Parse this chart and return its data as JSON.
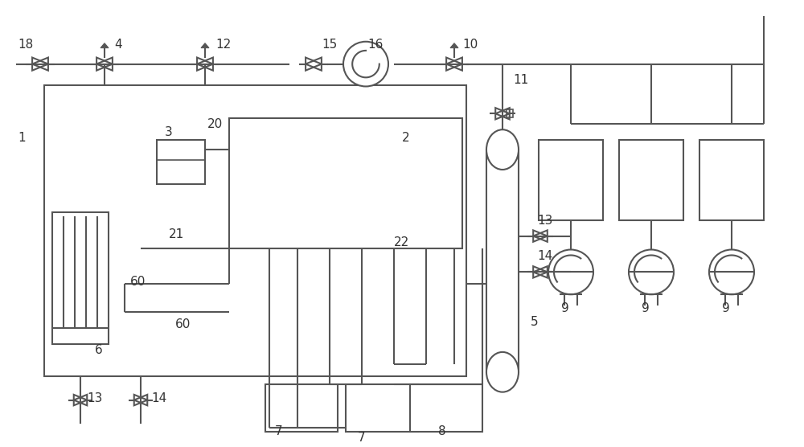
{
  "bg_color": "#ffffff",
  "line_color": "#555555",
  "line_width": 1.5,
  "fig_width": 10.0,
  "fig_height": 5.56
}
